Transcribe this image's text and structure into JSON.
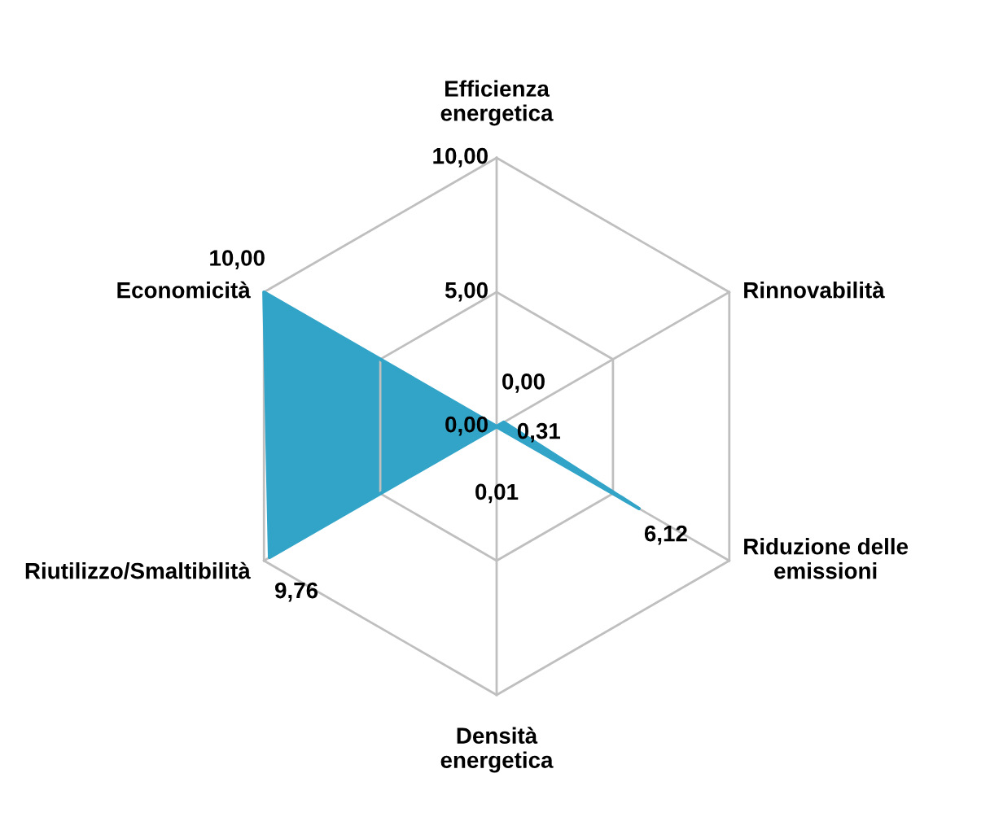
{
  "chart_data": {
    "type": "radar",
    "categories": [
      "Efficienza energetica",
      "Rinnovabilità",
      "Riduzione delle emissioni",
      "Densità energetica",
      "Riutilizzo/Smaltibilità",
      "Economicità"
    ],
    "series": [
      {
        "type": "area",
        "color": "#31a4c8",
        "values": [
          0.0,
          0.31,
          6.12,
          0.01,
          9.76,
          10.0
        ],
        "value_labels": [
          "0,00",
          "0,31",
          "6,12",
          "0,01",
          "9,76",
          "10,00"
        ]
      }
    ],
    "ylim": [
      0,
      10
    ],
    "yticks": [
      {
        "value": 0,
        "label": "0,00"
      },
      {
        "value": 5,
        "label": "5,00"
      },
      {
        "value": 10,
        "label": "10,00"
      }
    ],
    "grid": true
  }
}
